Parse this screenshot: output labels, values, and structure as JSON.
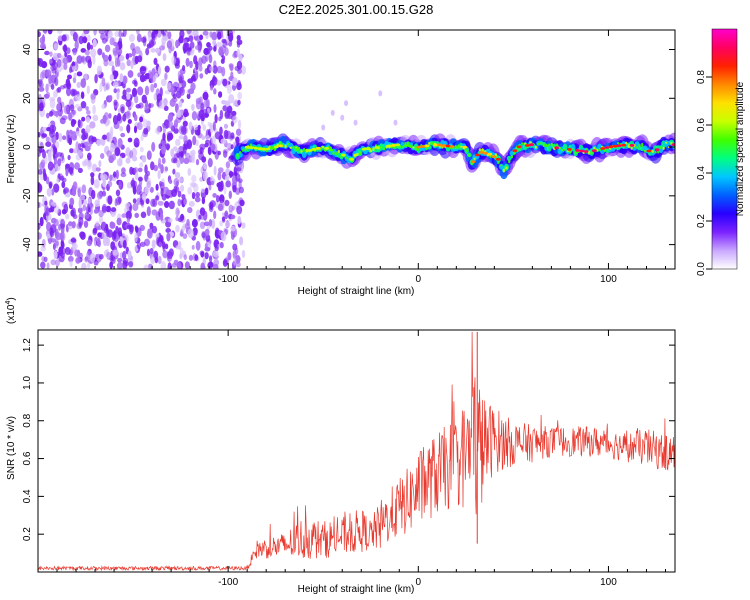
{
  "figure": {
    "title": "C2E2.2025.301.00.15.G28"
  },
  "chart_data": [
    {
      "type": "heatmap",
      "name": "spectrogram",
      "xlabel": "Height of straight line (km)",
      "ylabel": "Frequency (Hz)",
      "xlim": [
        -200,
        135
      ],
      "ylim": [
        -50,
        48
      ],
      "xticks": [
        -100,
        0,
        100
      ],
      "yticks": [
        -40,
        -20,
        0,
        20,
        40
      ],
      "noise_region_x": [
        -200,
        -95
      ],
      "ridge": {
        "x": [
          -95,
          -90,
          -80,
          -70,
          -60,
          -50,
          -40,
          -35,
          -30,
          -20,
          -10,
          0,
          10,
          20,
          25,
          28,
          32,
          38,
          42,
          45,
          48,
          52,
          60,
          70,
          80,
          90,
          100,
          110,
          118,
          122,
          126,
          130,
          135
        ],
        "y": [
          -3,
          0,
          -1,
          1,
          -2,
          0,
          -3,
          -5,
          -1,
          0,
          1,
          0,
          1,
          0,
          0,
          -7,
          -2,
          -3,
          -5,
          -10,
          -5,
          0,
          1,
          0,
          -1,
          -2,
          0,
          1,
          0,
          -2,
          -1,
          1,
          1
        ]
      },
      "colorbar": {
        "label": "Normalized spectral amplitude",
        "ticks": [
          0.0,
          0.2,
          0.4,
          0.6,
          0.8
        ],
        "range": [
          0,
          1
        ],
        "colors": [
          "#ffffff",
          "#c9a7ff",
          "#7b22ff",
          "#2800ff",
          "#0060ff",
          "#00c8ff",
          "#00ff80",
          "#40ff00",
          "#c8ff00",
          "#ffe000",
          "#ff8800",
          "#ff2000",
          "#ff0060",
          "#ff00cc"
        ]
      }
    },
    {
      "type": "line",
      "name": "snr",
      "xlabel": "Height of straight line (km)",
      "ylabel": "SNR (10 * v/v)",
      "exponent_label": "(x10",
      "exponent": "4",
      "exponent_close": ")",
      "xlim": [
        -200,
        135
      ],
      "ylim": [
        0,
        1.28
      ],
      "xticks": [
        -100,
        0,
        100
      ],
      "yticks": [
        0.2,
        0.4,
        0.6,
        0.8,
        1.0,
        1.2
      ],
      "ytick_labels": [
        "0.2",
        "0.4",
        "0.6",
        "0.8",
        "1.0",
        "1.2"
      ],
      "color": "#e8392e",
      "envelope": {
        "x": [
          -200,
          -90,
          -85,
          -70,
          -60,
          -50,
          -40,
          -30,
          -25,
          -20,
          -15,
          -10,
          -5,
          0,
          10,
          20,
          25,
          28,
          30,
          32,
          35,
          40,
          50,
          60,
          70,
          80,
          90,
          100,
          110,
          120,
          130,
          135
        ],
        "base": [
          0.02,
          0.02,
          0.12,
          0.14,
          0.18,
          0.17,
          0.19,
          0.22,
          0.2,
          0.24,
          0.3,
          0.34,
          0.38,
          0.44,
          0.52,
          0.58,
          0.62,
          0.66,
          0.7,
          0.64,
          0.68,
          0.7,
          0.68,
          0.68,
          0.69,
          0.69,
          0.69,
          0.68,
          0.66,
          0.66,
          0.63,
          0.63
        ],
        "amp": [
          0.01,
          0.01,
          0.05,
          0.07,
          0.12,
          0.1,
          0.1,
          0.12,
          0.08,
          0.14,
          0.14,
          0.16,
          0.18,
          0.2,
          0.22,
          0.24,
          0.3,
          0.36,
          0.46,
          0.4,
          0.24,
          0.18,
          0.12,
          0.1,
          0.08,
          0.08,
          0.08,
          0.08,
          0.08,
          0.1,
          0.1,
          0.1
        ]
      }
    }
  ]
}
